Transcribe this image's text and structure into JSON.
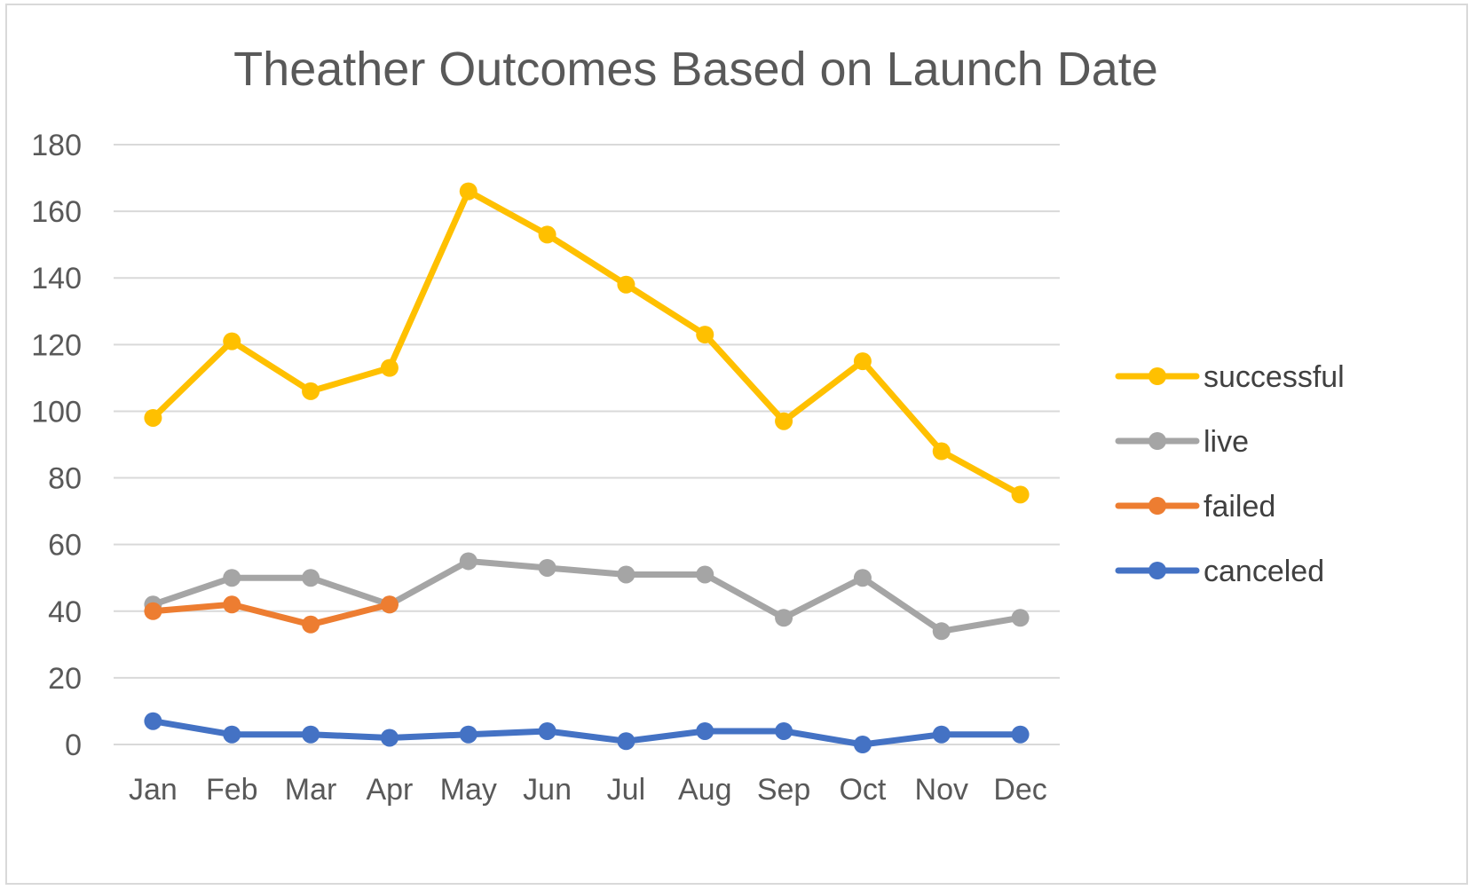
{
  "chart_data": {
    "type": "line",
    "title": "Theather Outcomes Based on Launch Date",
    "xlabel": "",
    "ylabel": "",
    "categories": [
      "Jan",
      "Feb",
      "Mar",
      "Apr",
      "May",
      "Jun",
      "Jul",
      "Aug",
      "Sep",
      "Oct",
      "Nov",
      "Dec"
    ],
    "ylim": [
      0,
      180
    ],
    "yticks": [
      0,
      20,
      40,
      60,
      80,
      100,
      120,
      140,
      160,
      180
    ],
    "grid": true,
    "legend_position": "right",
    "series": [
      {
        "name": "successful",
        "color": "#FFC000",
        "values": [
          98,
          121,
          106,
          113,
          166,
          153,
          138,
          123,
          97,
          115,
          88,
          75
        ]
      },
      {
        "name": "live",
        "color": "#A5A5A5",
        "values": [
          42,
          50,
          50,
          42,
          55,
          53,
          51,
          51,
          38,
          50,
          34,
          38
        ]
      },
      {
        "name": "failed",
        "color": "#ED7D31",
        "values": [
          40,
          42,
          36,
          42,
          null,
          null,
          null,
          null,
          null,
          null,
          null,
          null
        ]
      },
      {
        "name": "canceled",
        "color": "#4472C4",
        "values": [
          7,
          3,
          3,
          2,
          3,
          4,
          1,
          4,
          4,
          0,
          3,
          3
        ]
      }
    ]
  }
}
